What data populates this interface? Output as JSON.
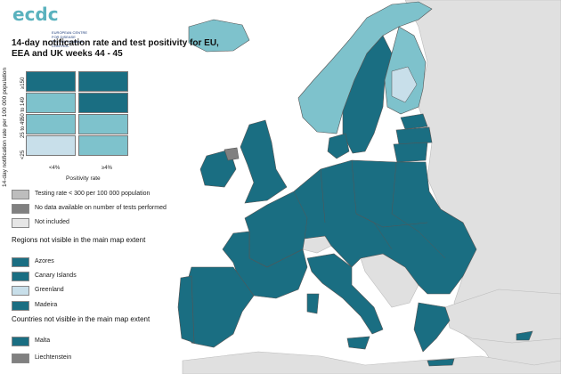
{
  "logo": {
    "text": "ecdc",
    "subtext": "EUROPEAN CENTRE FOR DISEASE PREVENTION AND CONTROL"
  },
  "title": "14-day notification rate and test positivity for EU, EEA and UK weeks 44 - 45",
  "matrix": {
    "y_axis_title": "14-day notification rate per 100 000 population",
    "y_ticks": [
      "≥150",
      "50 to 149",
      "25 to 49",
      "<25"
    ],
    "x_axis_title": "Positivity rate",
    "x_ticks": [
      "<4%",
      "≥4%"
    ],
    "colors": [
      [
        "#1a6e82",
        "#1a6e82"
      ],
      [
        "#7ec2cc",
        "#1a6e82"
      ],
      [
        "#7ec2cc",
        "#7ec2cc"
      ],
      [
        "#c8dfea",
        "#7ec2cc"
      ]
    ]
  },
  "legend_special": [
    {
      "label": "Testing rate < 300 per 100 000 population",
      "color": "#bdbdbd"
    },
    {
      "label": "No data available on number of tests performed",
      "color": "#808080"
    },
    {
      "label": "Not included",
      "color": "#e6e6e6"
    }
  ],
  "regions_heading": "Regions not visible in the main map extent",
  "regions": [
    {
      "label": "Azores",
      "color": "#1a6e82"
    },
    {
      "label": "Canary Islands",
      "color": "#1a6e82"
    },
    {
      "label": "Greenland",
      "color": "#c8dfea"
    },
    {
      "label": "Madeira",
      "color": "#1a6e82"
    }
  ],
  "countries_heading": "Countries not visible in the main map extent",
  "countries": [
    {
      "label": "Malta",
      "color": "#1a6e82"
    },
    {
      "label": "Liechtenstein",
      "color": "#808080"
    }
  ],
  "map_colors": {
    "sea": "#ffffff",
    "non_eu_land": "#e0e0e0",
    "dark_teal": "#1a6e82",
    "light_teal": "#7ec2cc",
    "pale_blue": "#c8dfea",
    "grey": "#808080",
    "border": "#555555"
  }
}
